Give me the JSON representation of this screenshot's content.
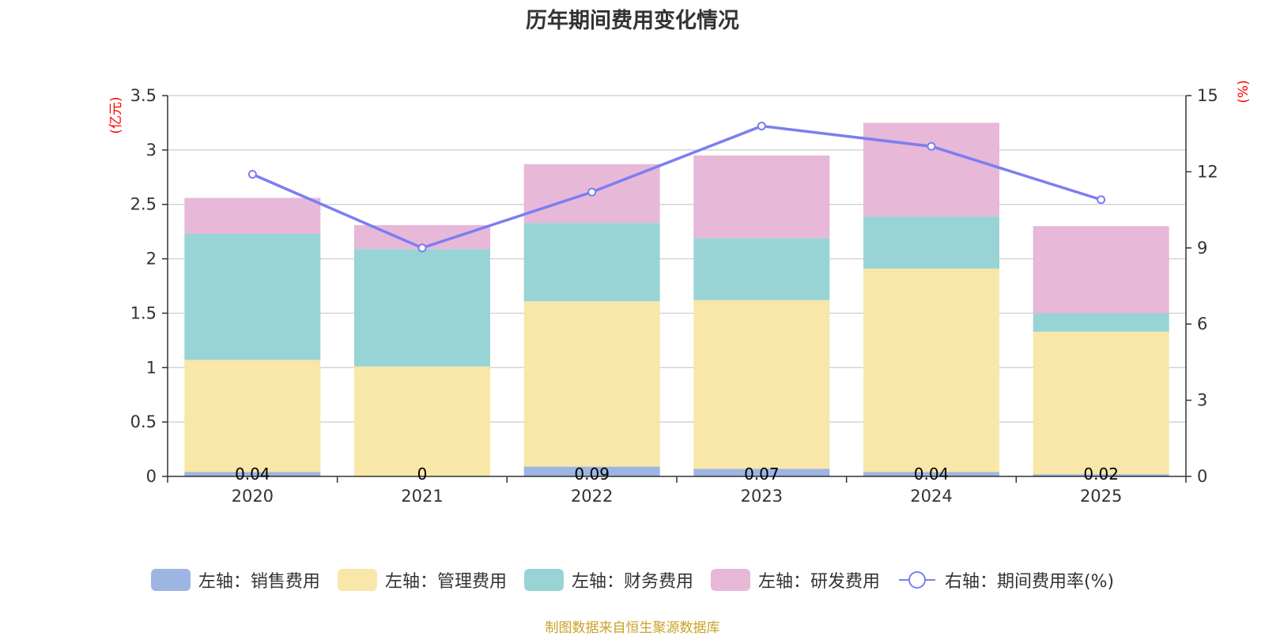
{
  "chart_data": {
    "type": "bar",
    "stacked": true,
    "title": "历年期间费用变化情况",
    "categories": [
      "2020",
      "2021",
      "2022",
      "2023",
      "2024",
      "2025"
    ],
    "left_axis": {
      "unit": "(亿元)",
      "ylim": [
        0,
        3.5
      ],
      "ticks": [
        "0",
        "0.5",
        "1",
        "1.5",
        "2",
        "2.5",
        "3",
        "3.5"
      ]
    },
    "right_axis": {
      "unit": "(%)",
      "ylim": [
        0,
        15
      ],
      "ticks": [
        "0",
        "3",
        "6",
        "9",
        "12",
        "15"
      ]
    },
    "series": [
      {
        "name": "左轴：销售费用",
        "color": "#9db5e2",
        "values": [
          0.04,
          0,
          0.09,
          0.07,
          0.04,
          0.02
        ],
        "labels": [
          "0.04",
          "0",
          "0.09",
          "0.07",
          "0.04",
          "0.02"
        ]
      },
      {
        "name": "左轴：管理费用",
        "color": "#f8e7a8",
        "values": [
          1.03,
          1.01,
          1.52,
          1.55,
          1.87,
          1.31
        ]
      },
      {
        "name": "左轴：财务费用",
        "color": "#98d4d5",
        "values": [
          1.16,
          1.08,
          0.72,
          0.57,
          0.48,
          0.17
        ]
      },
      {
        "name": "左轴：研发费用",
        "color": "#e7b8d8",
        "values": [
          0.33,
          0.22,
          0.54,
          0.76,
          0.86,
          0.8
        ]
      }
    ],
    "line_series": {
      "name": "右轴：期间费用率(%)",
      "color": "#7b7ef0",
      "axis": "right",
      "values": [
        11.9,
        9.0,
        11.2,
        13.8,
        13.0,
        10.9
      ]
    }
  },
  "footer": {
    "source": "制图数据来自恒生聚源数据库"
  }
}
